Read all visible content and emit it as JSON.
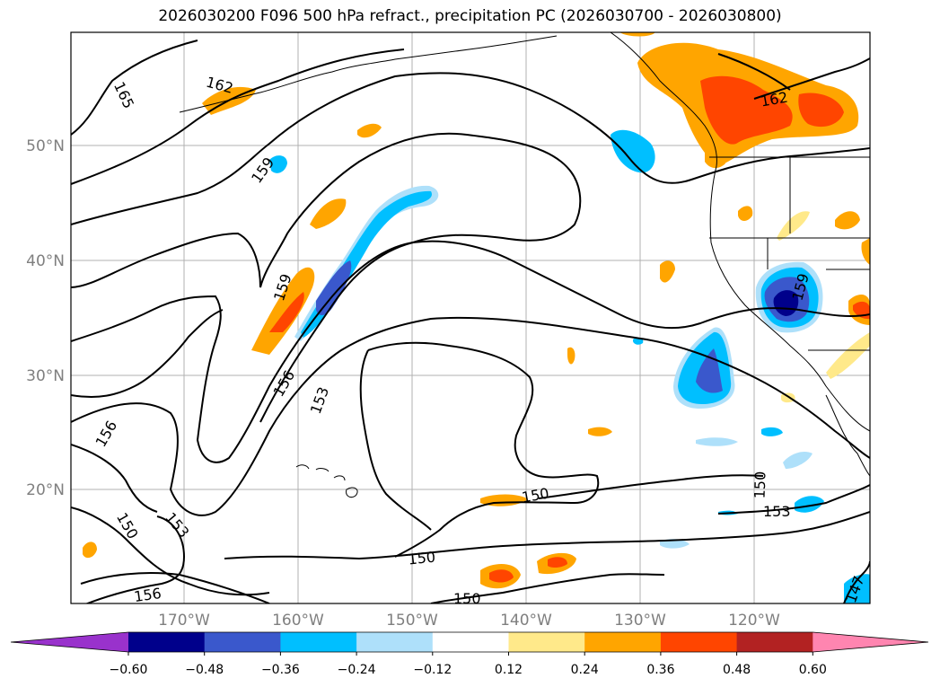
{
  "title": "2026030200 F096 500 hPa refract., precipitation PC (2026030700 - 2026030800)",
  "map": {
    "lat_labels": [
      "50°N",
      "40°N",
      "30°N",
      "20°N"
    ],
    "lon_labels": [
      "170°W",
      "160°W",
      "150°W",
      "140°W",
      "130°W",
      "120°W"
    ]
  },
  "contour_labels": [
    "165",
    "162",
    "159",
    "159",
    "156",
    "153",
    "156",
    "150",
    "153",
    "156",
    "150",
    "150",
    "150",
    "150",
    "153",
    "162",
    "159",
    "147"
  ],
  "colorbar": {
    "tick_labels": [
      "−0.60",
      "−0.48",
      "−0.36",
      "−0.24",
      "−0.12",
      "0.12",
      "0.24",
      "0.36",
      "0.48",
      "0.60"
    ],
    "colors": [
      "#9932cc",
      "#00008b",
      "#3a58cc",
      "#00bfff",
      "#aee0fa",
      "#ffffff",
      "#ffe98a",
      "#ffa500",
      "#ff4500",
      "#b22222",
      "#ff85b0"
    ]
  }
}
